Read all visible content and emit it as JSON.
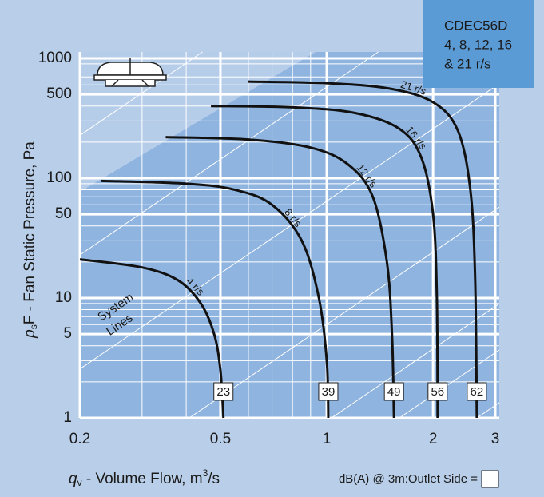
{
  "chart_data": {
    "type": "line",
    "title_lines": [
      "CDEC56D",
      "4, 8, 12, 16",
      "& 21 r/s"
    ],
    "y_label": {
      "symbol": "p",
      "subscript": "s",
      "text": "F - Fan Static Pressure, Pa"
    },
    "x_label": {
      "symbol": "q",
      "subscript": "v",
      "text": " - Volume Flow, m",
      "superscript": "3",
      "end": "/s"
    },
    "annotation_lines": [
      "System",
      "Lines"
    ],
    "footer": "dB(A) @ 3m:Outlet  Side =",
    "xscale": "log",
    "yscale": "log",
    "grid": true,
    "xlim": [
      0.2,
      3
    ],
    "ylim": [
      1,
      1000
    ],
    "xticks": [
      0.2,
      0.5,
      1,
      2,
      3
    ],
    "yticks": [
      1,
      5,
      10,
      50,
      100,
      500,
      1000
    ],
    "series": [
      {
        "name": "4 r/s",
        "color": "#111111",
        "sound_level": 23,
        "x": [
          0.2,
          0.3,
          0.38,
          0.44,
          0.48,
          0.5,
          0.51
        ],
        "values": [
          21,
          18,
          14,
          9,
          5,
          2.5,
          1
        ]
      },
      {
        "name": "8 r/s",
        "color": "#111111",
        "sound_level": 39,
        "x": [
          0.23,
          0.4,
          0.55,
          0.7,
          0.85,
          0.95,
          1.0,
          1.01
        ],
        "values": [
          95,
          90,
          80,
          60,
          30,
          10,
          3,
          1
        ]
      },
      {
        "name": "12 r/s",
        "color": "#111111",
        "sound_level": 49,
        "x": [
          0.35,
          0.6,
          0.9,
          1.15,
          1.35,
          1.48,
          1.53,
          1.55
        ],
        "values": [
          220,
          210,
          180,
          130,
          70,
          20,
          5,
          1
        ]
      },
      {
        "name": "16 r/s",
        "color": "#111111",
        "sound_level": 56,
        "x": [
          0.47,
          0.8,
          1.2,
          1.6,
          1.85,
          2.0,
          2.05,
          2.06
        ],
        "values": [
          400,
          390,
          350,
          260,
          150,
          50,
          10,
          1
        ]
      },
      {
        "name": "21 r/s",
        "color": "#111111",
        "sound_level": 62,
        "x": [
          0.6,
          1.0,
          1.5,
          2.0,
          2.35,
          2.55,
          2.63,
          2.66
        ],
        "values": [
          640,
          620,
          560,
          430,
          250,
          80,
          15,
          1
        ]
      }
    ]
  }
}
